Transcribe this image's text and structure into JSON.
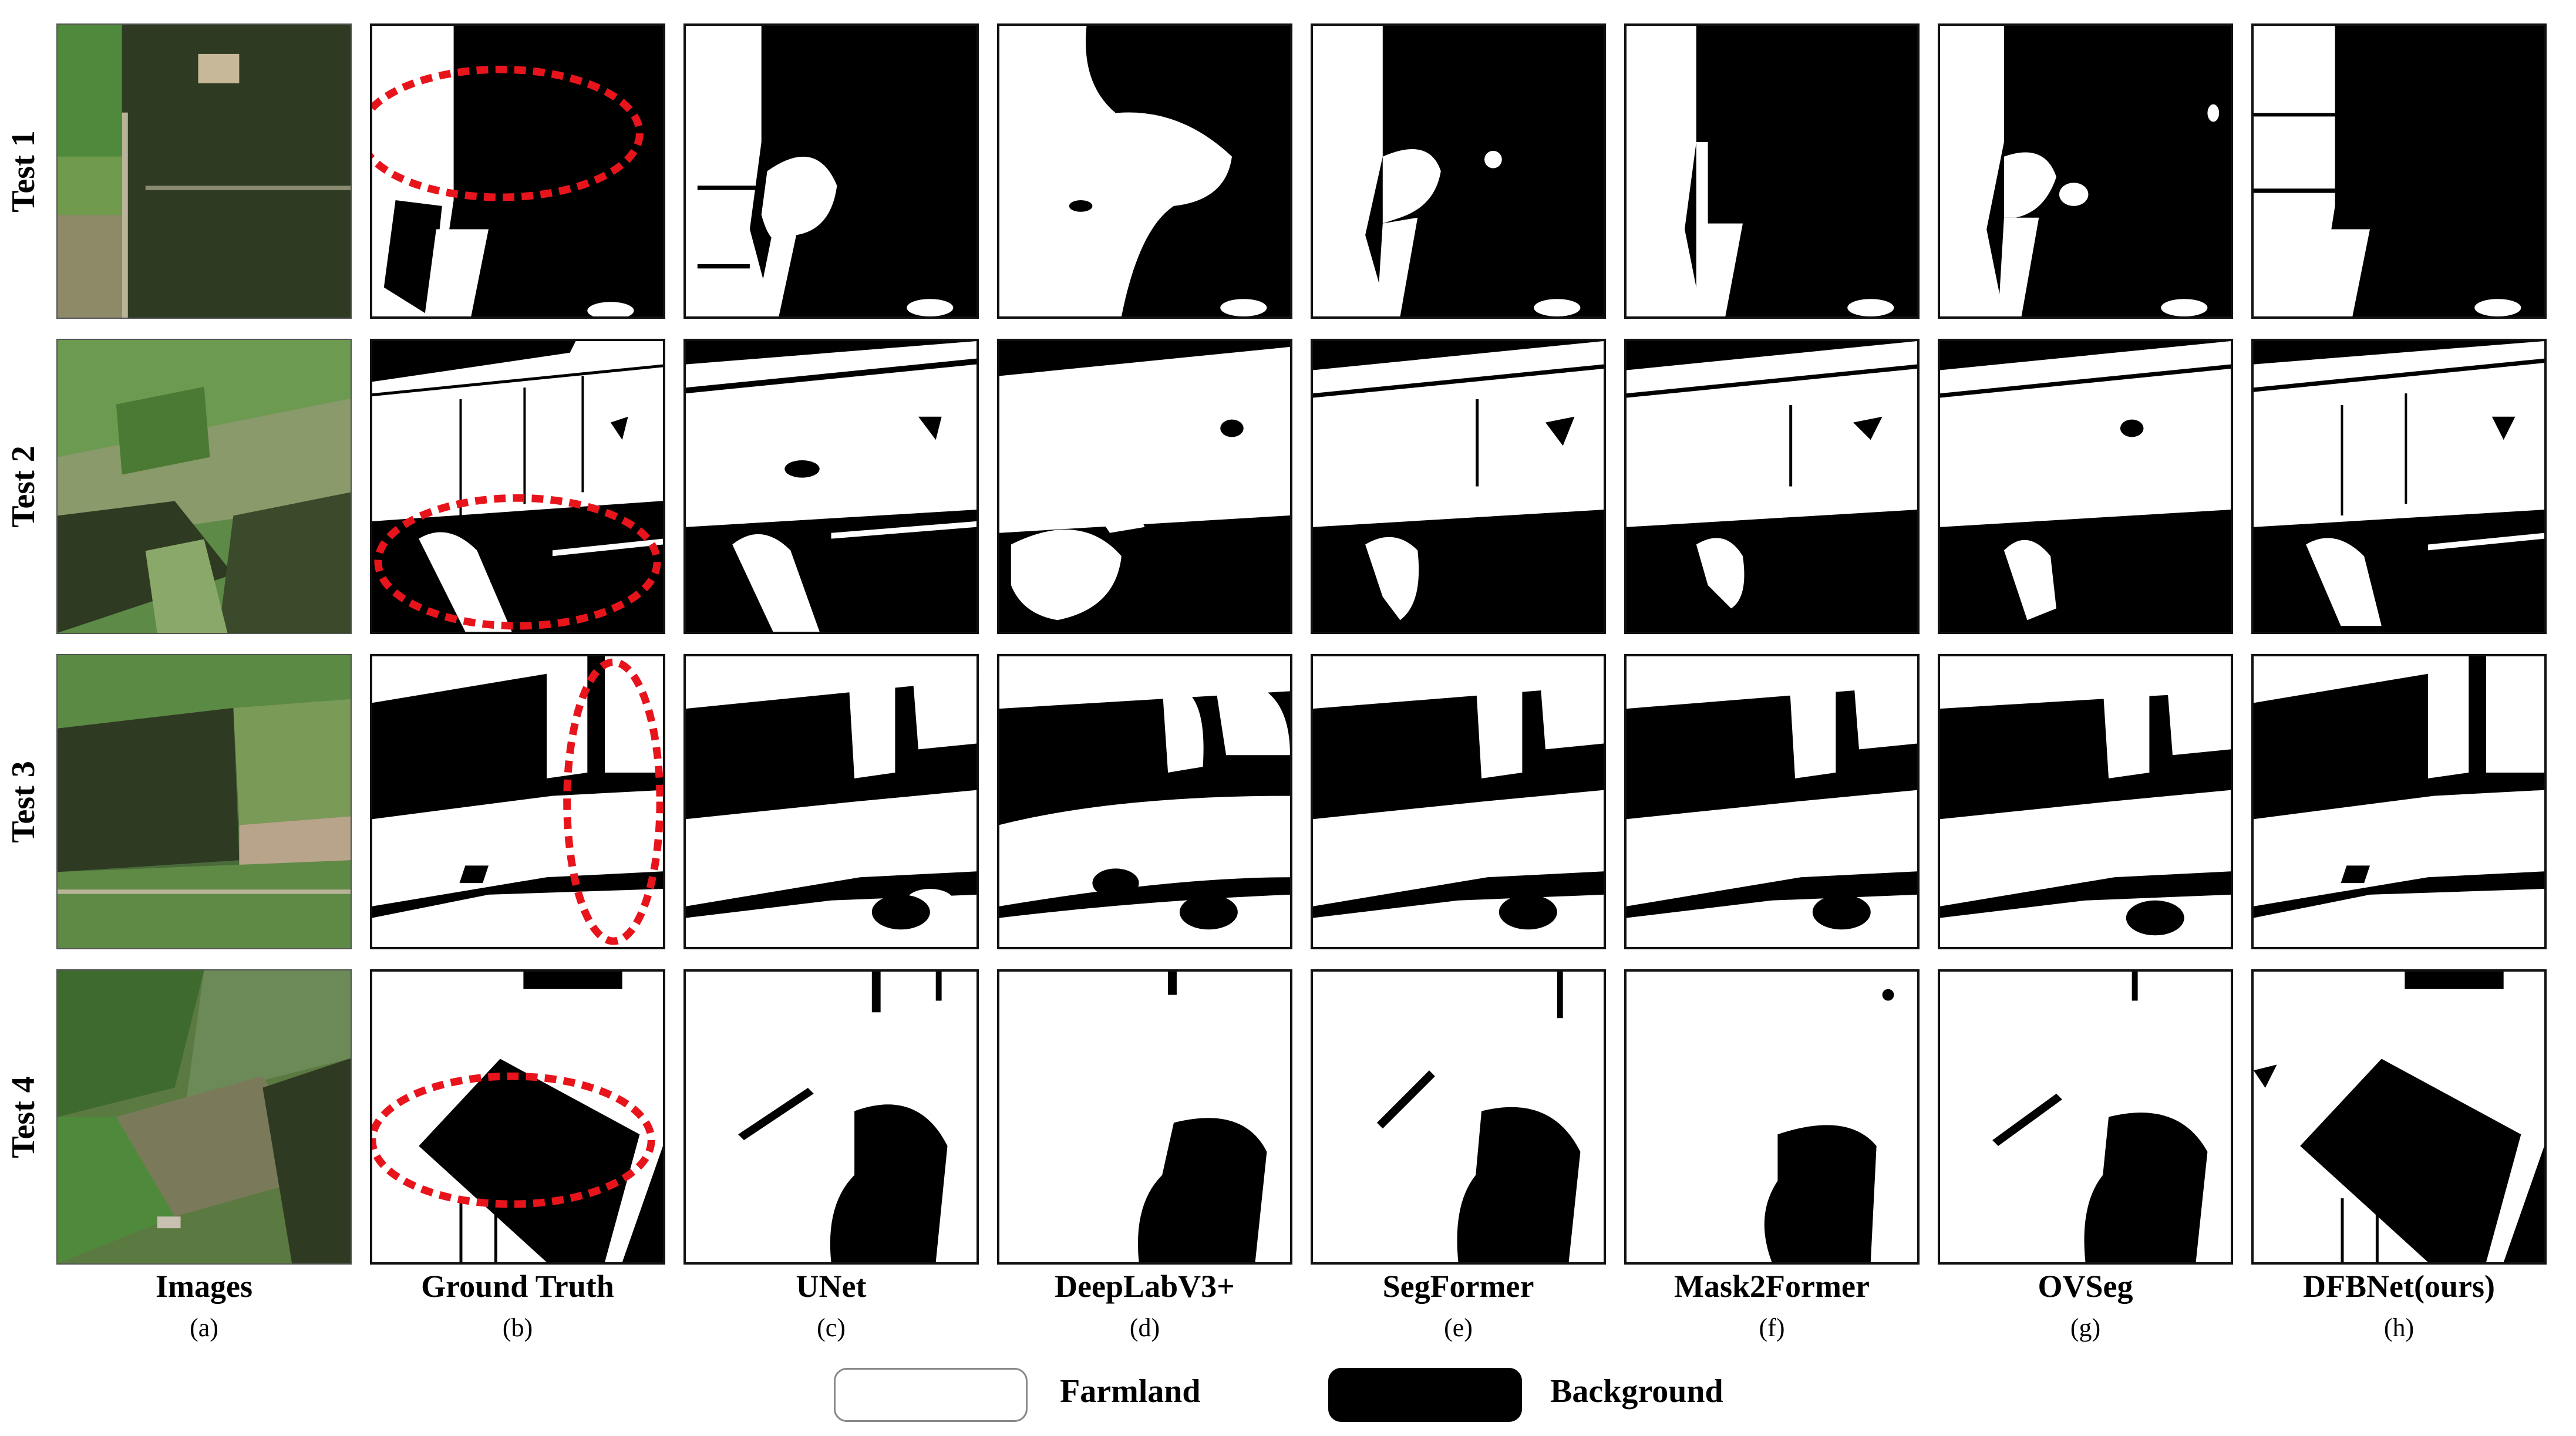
{
  "rows": [
    {
      "label": "Test 1"
    },
    {
      "label": "Test 2"
    },
    {
      "label": "Test 3"
    },
    {
      "label": "Test 4"
    }
  ],
  "columns": [
    {
      "title": "Images",
      "letter": "(a)"
    },
    {
      "title": "Ground Truth",
      "letter": "(b)"
    },
    {
      "title": "UNet",
      "letter": "(c)"
    },
    {
      "title": "DeepLabV3+",
      "letter": "(d)"
    },
    {
      "title": "SegFormer",
      "letter": "(e)"
    },
    {
      "title": "Mask2Former",
      "letter": "(f)"
    },
    {
      "title": "OVSeg",
      "letter": "(g)"
    },
    {
      "title": "DFBNet(ours)",
      "letter": "(h)"
    }
  ],
  "legend": {
    "farmland_label": "Farmland",
    "background_label": "Background"
  },
  "colors": {
    "farmland": "#ffffff",
    "background": "#000000",
    "highlight": "#e8141c",
    "photo_dark_forest": "#2f3a22",
    "photo_green_field": "#4f8a3c",
    "photo_light_field": "#8e9a70"
  }
}
